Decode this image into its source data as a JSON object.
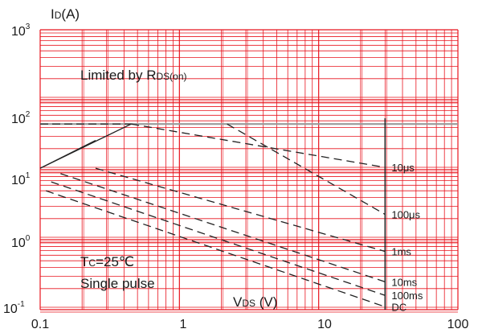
{
  "chart_data": {
    "type": "line",
    "title": "",
    "xscale": "log",
    "yscale": "log",
    "xlim": [
      0.1,
      100
    ],
    "ylim": [
      0.1,
      1000
    ],
    "grid": true,
    "x_tick_labels": [
      "0.1",
      "1",
      "10",
      "100"
    ],
    "y_tick_labels": [
      {
        "base": "10",
        "exp": "-1"
      },
      {
        "base": "10",
        "exp": "0"
      },
      {
        "base": "10",
        "exp": "1"
      },
      {
        "base": "10",
        "exp": "2"
      },
      {
        "base": "10",
        "exp": "3"
      }
    ],
    "ylabel": {
      "main": "I",
      "sub": "D",
      "unit": "(A)"
    },
    "xlabel": {
      "main": "V",
      "sub": "DS",
      "unit": " (V)"
    },
    "annotations": {
      "limited": {
        "text": "Limited by R",
        "sub": "DS(on)"
      },
      "tc": {
        "main": "T",
        "sub": "C",
        "rest": "=25℃"
      },
      "pulse": "Single pulse"
    },
    "max_current_limit": {
      "x": [
        0.1,
        0.45
      ],
      "y": [
        45,
        45
      ]
    },
    "rds_on_limit": {
      "x": [
        0.1,
        0.45
      ],
      "y": [
        10.5,
        45
      ]
    },
    "max_voltage": 30,
    "series": [
      {
        "name": "10μs",
        "x": [
          0.45,
          30
        ],
        "y": [
          45,
          10.8
        ]
      },
      {
        "name": "100μs",
        "x": [
          2.2,
          30
        ],
        "y": [
          45,
          2.3
        ]
      },
      {
        "name": "1ms",
        "x": [
          0.25,
          30
        ],
        "y": [
          10.5,
          0.68
        ]
      },
      {
        "name": "10ms",
        "x": [
          0.14,
          30
        ],
        "y": [
          8.8,
          0.25
        ]
      },
      {
        "name": "100ms",
        "x": [
          0.12,
          30
        ],
        "y": [
          6.7,
          0.16
        ]
      },
      {
        "name": "DC",
        "x": [
          0.11,
          30
        ],
        "y": [
          5.0,
          0.11
        ]
      }
    ]
  },
  "colors": {
    "grid": "#e8141e",
    "curve": "#222222",
    "limit_line": "#9a9a9a"
  }
}
